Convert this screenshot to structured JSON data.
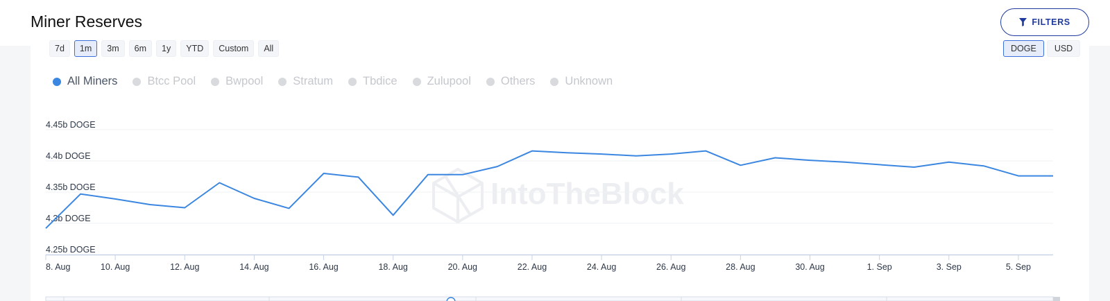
{
  "page": {
    "title": "Miner Reserves",
    "filters_label": "FILTERS"
  },
  "time_ranges": [
    {
      "label": "7d",
      "active": false
    },
    {
      "label": "1m",
      "active": true
    },
    {
      "label": "3m",
      "active": false
    },
    {
      "label": "6m",
      "active": false
    },
    {
      "label": "1y",
      "active": false
    },
    {
      "label": "YTD",
      "active": false
    },
    {
      "label": "Custom",
      "active": false
    },
    {
      "label": "All",
      "active": false
    }
  ],
  "units": [
    {
      "label": "DOGE",
      "active": true
    },
    {
      "label": "USD",
      "active": false
    }
  ],
  "legend": [
    {
      "label": "All Miners",
      "active": true
    },
    {
      "label": "Btcc Pool",
      "active": false
    },
    {
      "label": "Bwpool",
      "active": false
    },
    {
      "label": "Stratum",
      "active": false
    },
    {
      "label": "Tbdice",
      "active": false
    },
    {
      "label": "Zulupool",
      "active": false
    },
    {
      "label": "Others",
      "active": false
    },
    {
      "label": "Unknown",
      "active": false
    }
  ],
  "watermark": "IntoTheBlock",
  "colors": {
    "series": "#3a86e0",
    "accent": "#1f3a9e",
    "grid": "#eef0f3",
    "axis": "#c8d3e6"
  },
  "chart_data": {
    "type": "line",
    "y_unit": "DOGE",
    "ylim": [
      4.25,
      4.45
    ],
    "y_ticks": [
      4.45,
      4.4,
      4.35,
      4.3,
      4.25
    ],
    "y_tick_labels": [
      "4.45b DOGE",
      "4.4b DOGE",
      "4.35b DOGE",
      "4.3b DOGE",
      "4.25b DOGE"
    ],
    "x_tick_labels": [
      "8. Aug",
      "10. Aug",
      "12. Aug",
      "14. Aug",
      "16. Aug",
      "18. Aug",
      "20. Aug",
      "22. Aug",
      "24. Aug",
      "26. Aug",
      "28. Aug",
      "30. Aug",
      "1. Sep",
      "3. Sep",
      "5. Sep"
    ],
    "x_tick_days": [
      8,
      10,
      12,
      14,
      16,
      18,
      20,
      22,
      24,
      26,
      28,
      30,
      32,
      34,
      36
    ],
    "x_domain_days": [
      8,
      37
    ],
    "grid": true,
    "legend_position": "top-left",
    "series": [
      {
        "name": "All Miners",
        "x_days": [
          8,
          9,
          10,
          11,
          12,
          13,
          14,
          15,
          16,
          17,
          18,
          19,
          20,
          21,
          22,
          23,
          24,
          25,
          26,
          27,
          28,
          29,
          30,
          31,
          32,
          33,
          34,
          35,
          36,
          37
        ],
        "values": [
          4.292,
          4.347,
          4.339,
          4.33,
          4.325,
          4.365,
          4.34,
          4.324,
          4.38,
          4.374,
          4.313,
          4.378,
          4.378,
          4.391,
          4.416,
          4.413,
          4.411,
          4.408,
          4.411,
          4.416,
          4.393,
          4.405,
          4.401,
          4.398,
          4.394,
          4.39,
          4.398,
          4.392,
          4.376,
          4.376
        ]
      }
    ]
  }
}
